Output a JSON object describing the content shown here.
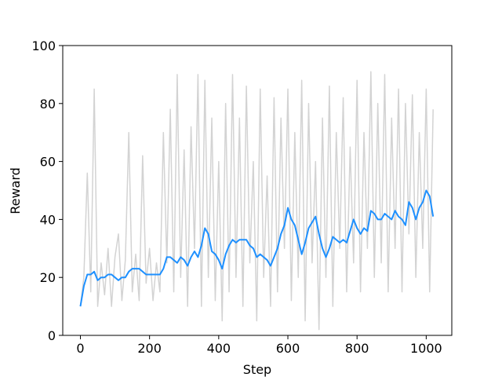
{
  "chart_data": {
    "type": "line",
    "x_label": "Step",
    "y_label": "Reward",
    "x": [
      0,
      10,
      20,
      30,
      40,
      50,
      60,
      70,
      80,
      90,
      100,
      110,
      120,
      130,
      140,
      150,
      160,
      170,
      180,
      190,
      200,
      210,
      220,
      230,
      240,
      250,
      260,
      270,
      280,
      290,
      300,
      310,
      320,
      330,
      340,
      350,
      360,
      370,
      380,
      390,
      400,
      410,
      420,
      430,
      440,
      450,
      460,
      470,
      480,
      490,
      500,
      510,
      520,
      530,
      540,
      550,
      560,
      570,
      580,
      590,
      600,
      610,
      620,
      630,
      640,
      650,
      660,
      670,
      680,
      690,
      700,
      710,
      720,
      730,
      740,
      750,
      760,
      770,
      780,
      790,
      800,
      810,
      820,
      830,
      840,
      850,
      860,
      870,
      880,
      890,
      900,
      910,
      920,
      930,
      940,
      950,
      960,
      970,
      980,
      990,
      1000,
      1010,
      1020
    ],
    "series": [
      {
        "color": "#d3d3d3",
        "values": [
          10,
          20,
          56,
          15,
          85,
          10,
          25,
          14,
          30,
          10,
          27,
          35,
          12,
          26,
          70,
          15,
          28,
          12,
          62,
          18,
          30,
          12,
          25,
          15,
          70,
          25,
          78,
          15,
          90,
          20,
          64,
          10,
          72,
          30,
          90,
          10,
          88,
          20,
          75,
          12,
          60,
          5,
          80,
          15,
          90,
          20,
          75,
          10,
          86,
          25,
          60,
          5,
          85,
          20,
          55,
          10,
          82,
          15,
          75,
          30,
          85,
          12,
          70,
          20,
          88,
          5,
          80,
          25,
          60,
          2,
          75,
          20,
          86,
          10,
          70,
          30,
          82,
          15,
          65,
          25,
          88,
          15,
          70,
          30,
          91,
          20,
          80,
          25,
          90,
          15,
          75,
          30,
          85,
          15,
          80,
          35,
          83,
          20,
          70,
          30,
          85,
          15,
          78
        ]
      },
      {
        "color": "#1e90ff",
        "values": [
          10,
          17,
          21,
          21,
          22,
          19,
          20,
          20,
          21,
          21,
          20,
          19,
          20,
          20,
          22,
          23,
          23,
          23,
          22,
          21,
          21,
          21,
          21,
          21,
          23,
          27,
          27,
          26,
          25,
          27,
          26,
          24,
          27,
          29,
          27,
          31,
          37,
          35,
          29,
          28,
          26,
          23,
          28,
          31,
          33,
          32,
          33,
          33,
          33,
          31,
          30,
          27,
          28,
          27,
          26,
          24,
          27,
          30,
          35,
          38,
          44,
          40,
          38,
          33,
          28,
          32,
          37,
          39,
          41,
          35,
          30,
          27,
          30,
          34,
          33,
          32,
          33,
          32,
          36,
          40,
          37,
          35,
          37,
          36,
          43,
          42,
          40,
          40,
          42,
          41,
          40,
          43,
          41,
          40,
          38,
          46,
          44,
          40,
          44,
          46,
          50,
          48,
          41
        ]
      }
    ],
    "xlim": [
      -51,
      1074
    ],
    "xticks": [
      0,
      200,
      400,
      600,
      800,
      1000
    ],
    "ylim": [
      0,
      100
    ],
    "yticks": [
      0,
      20,
      40,
      60,
      80,
      100
    ]
  }
}
